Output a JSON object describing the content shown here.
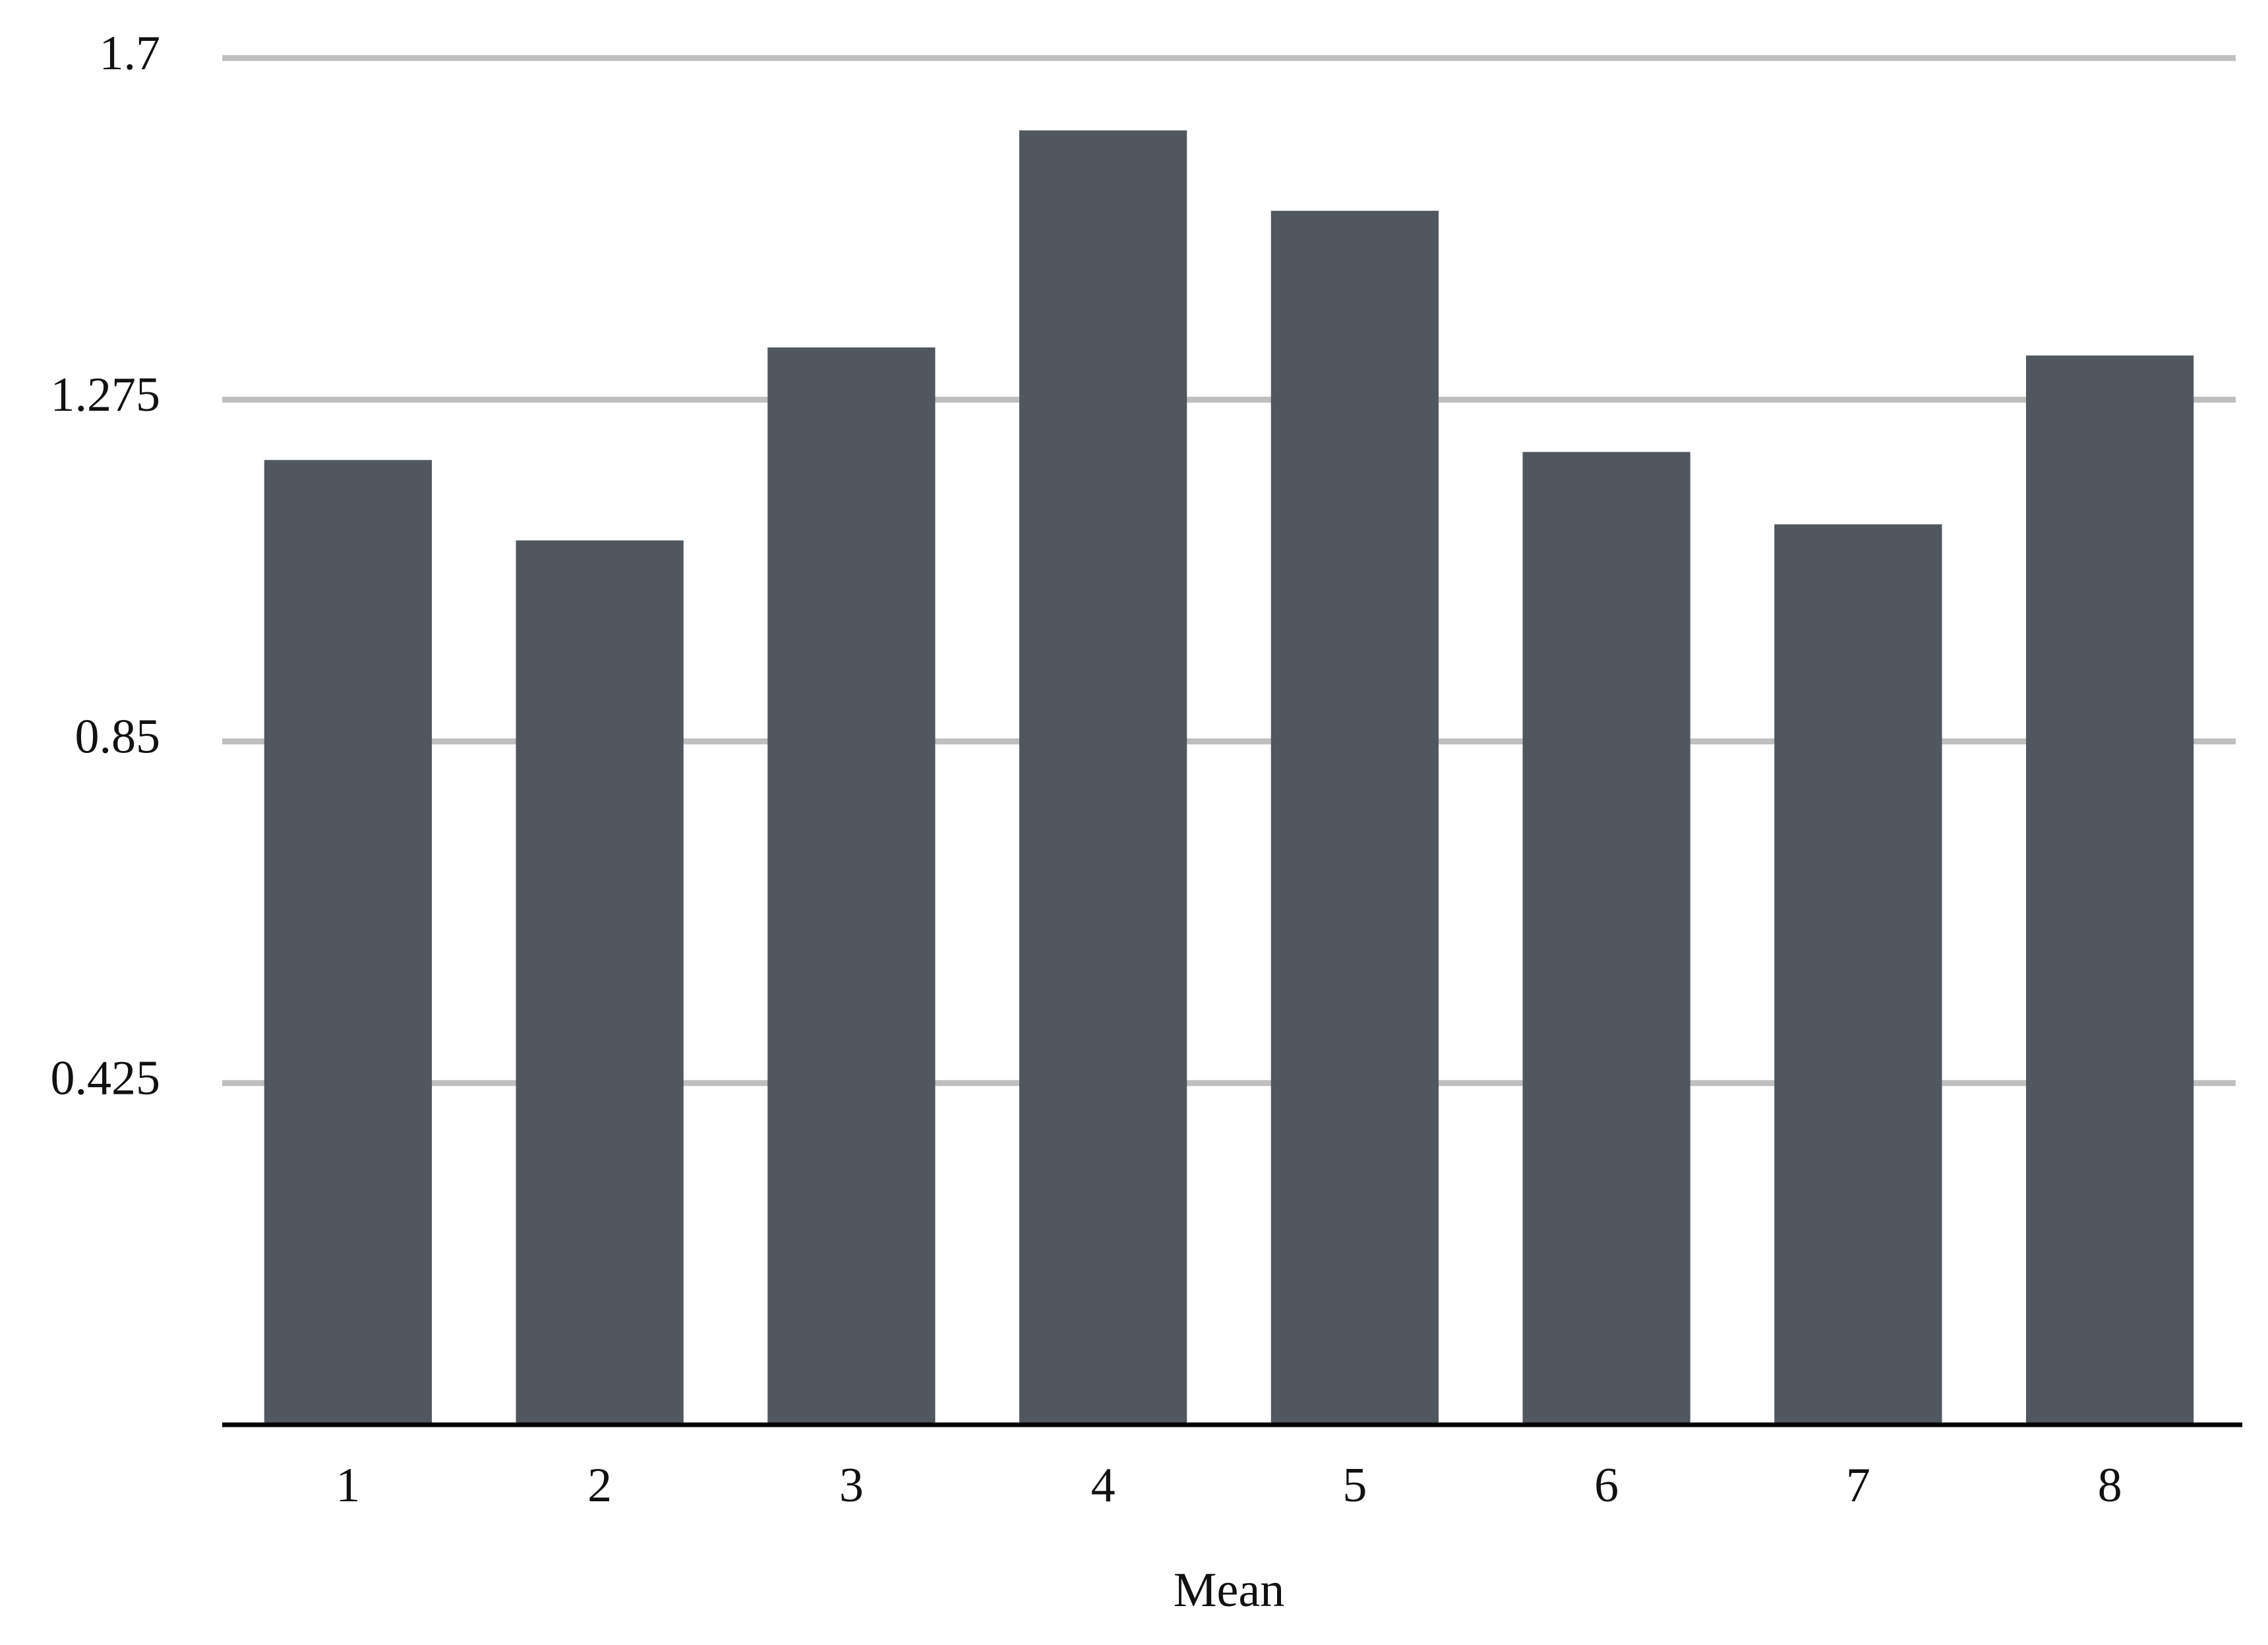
{
  "chart_data": {
    "type": "bar",
    "x_label": "Mean",
    "categories": [
      "1",
      "2",
      "3",
      "4",
      "5",
      "6",
      "7",
      "8"
    ],
    "values": [
      1.2,
      1.1,
      1.34,
      1.61,
      1.51,
      1.21,
      1.12,
      1.33
    ],
    "color": "#50575f",
    "ylim": [
      0,
      1.7
    ],
    "yticks": [
      0.425,
      0.85,
      1.275,
      1.7
    ],
    "grid": true
  }
}
